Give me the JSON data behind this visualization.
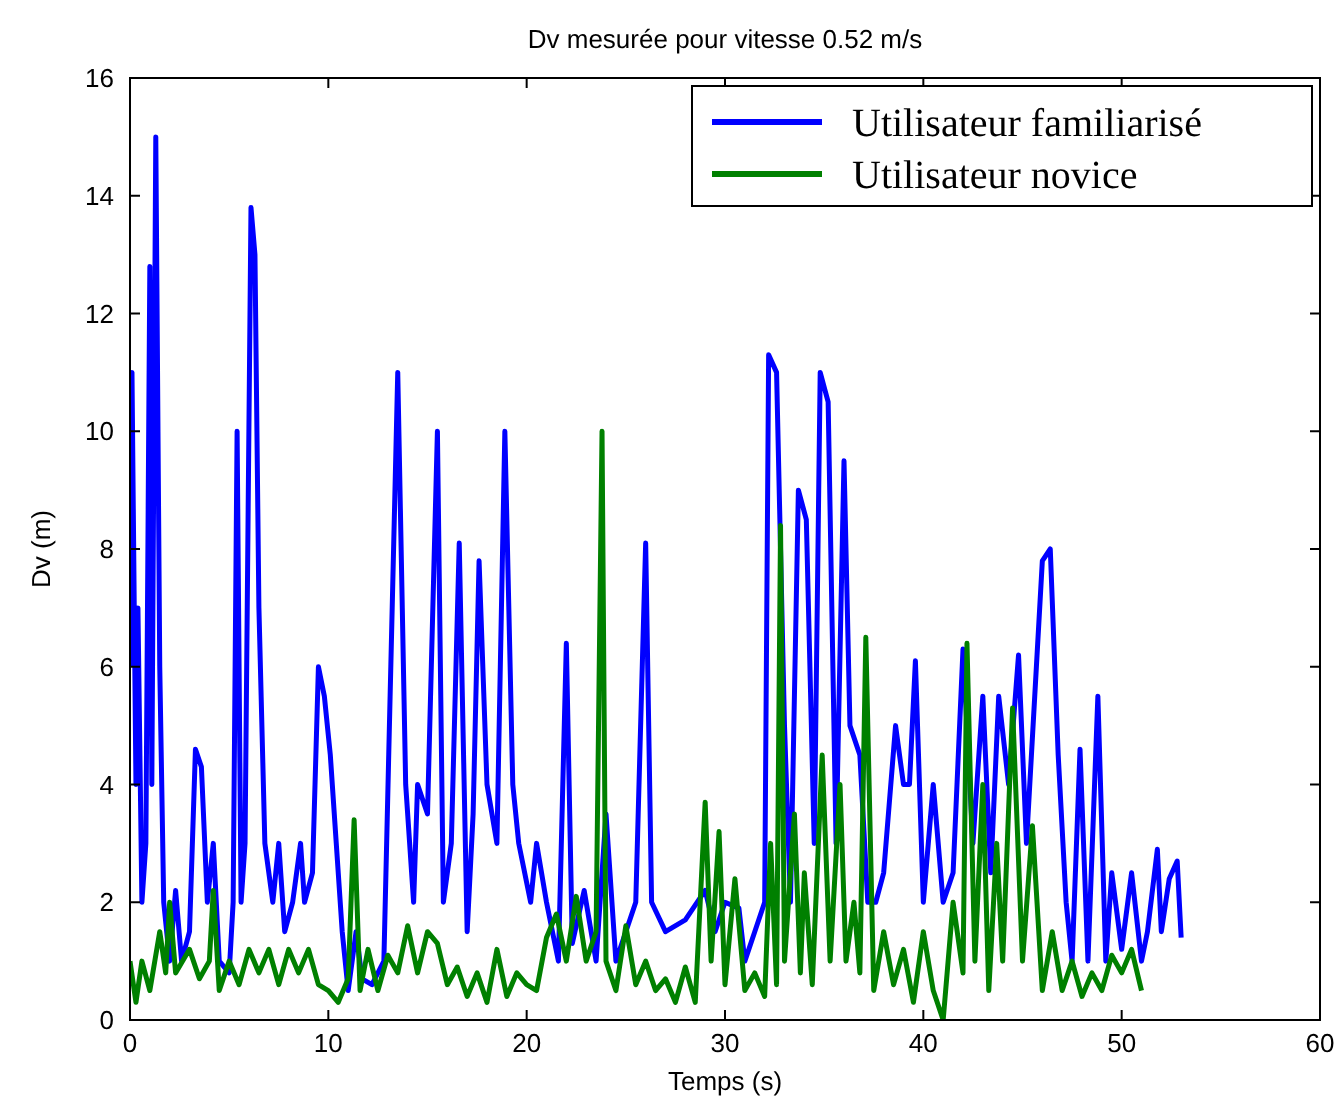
{
  "chart_data": {
    "type": "line",
    "title": "Dv mesurée pour vitesse 0.52 m/s",
    "xlabel": "Temps (s)",
    "ylabel": "Dv (m)",
    "xlim": [
      0,
      60
    ],
    "xticks": [
      0,
      10,
      20,
      30,
      40,
      50,
      60
    ],
    "ylim": [
      0,
      16
    ],
    "yticks": [
      0,
      2,
      4,
      6,
      8,
      10,
      12,
      14,
      16
    ],
    "grid": false,
    "legend": "top right",
    "marker": "none",
    "line_style": "solid",
    "series": [
      {
        "name": "Utilisateur familiarisé",
        "color": "#0000ff",
        "x": [
          0,
          0.1,
          0.3,
          0.4,
          0.6,
          0.8,
          1.0,
          1.1,
          1.3,
          1.5,
          1.7,
          2.0,
          2.3,
          2.6,
          3.0,
          3.3,
          3.6,
          3.9,
          4.2,
          4.5,
          5.0,
          5.2,
          5.4,
          5.6,
          5.8,
          6.1,
          6.3,
          6.5,
          6.8,
          7.2,
          7.5,
          7.8,
          8.2,
          8.6,
          8.8,
          9.2,
          9.5,
          9.8,
          10.1,
          10.4,
          10.7,
          11.0,
          11.4,
          11.7,
          12.2,
          12.8,
          13.5,
          13.9,
          14.3,
          14.5,
          15.0,
          15.5,
          15.8,
          16.2,
          16.6,
          17.0,
          17.3,
          17.6,
          18.0,
          18.5,
          18.9,
          19.3,
          19.6,
          20.2,
          20.5,
          21.0,
          21.6,
          22.0,
          22.3,
          22.9,
          23.5,
          24.0,
          24.5,
          25.0,
          25.5,
          26.0,
          26.3,
          27.0,
          28.0,
          29.0,
          29.5,
          30.0,
          30.7,
          31.0,
          31.5,
          32.0,
          32.2,
          32.6,
          33.0,
          33.3,
          33.7,
          34.1,
          34.5,
          34.8,
          35.2,
          35.6,
          36.0,
          36.3,
          36.8,
          37.2,
          37.6,
          38.0,
          38.6,
          39.0,
          39.3,
          39.6,
          40.0,
          40.5,
          41.0,
          41.5,
          42.0,
          42.5,
          43.0,
          43.4,
          43.8,
          44.3,
          44.8,
          45.2,
          45.7,
          46.0,
          46.4,
          46.8,
          47.2,
          47.5,
          47.9,
          48.3,
          48.8,
          49.2,
          49.5,
          50.0,
          50.5,
          51.0,
          51.3,
          51.8,
          52.0,
          52.4,
          52.8,
          53.0
        ],
        "values": [
          6,
          11,
          4,
          7,
          2,
          3,
          12.8,
          4,
          15,
          6,
          2,
          1,
          2.2,
          1,
          1.5,
          4.6,
          4.3,
          2,
          3,
          1,
          0.8,
          2,
          10,
          2,
          3,
          13.8,
          13,
          7,
          3,
          2,
          3,
          1.5,
          2,
          3,
          2,
          2.5,
          6,
          5.5,
          4.5,
          3,
          1.5,
          0.5,
          1.5,
          0.7,
          0.6,
          1,
          11,
          4,
          2,
          4,
          3.5,
          10,
          2,
          3,
          8.1,
          1.5,
          3.5,
          7.8,
          4,
          3,
          10,
          4,
          3,
          2,
          3,
          2,
          1,
          6.4,
          1.3,
          2.2,
          1,
          3.5,
          1,
          1.5,
          2,
          8.1,
          2,
          1.5,
          1.7,
          2.2,
          1.5,
          2,
          1.9,
          1,
          1.5,
          2,
          11.3,
          11,
          5,
          2,
          9,
          8.5,
          3,
          11,
          10.5,
          3,
          9.5,
          5,
          4.5,
          2,
          2,
          2.5,
          5,
          4,
          4,
          6.1,
          2,
          4,
          2,
          2.5,
          6.3,
          3,
          5.5,
          2.5,
          5.5,
          4,
          6.2,
          3,
          6,
          7.8,
          8,
          4.5,
          2,
          1,
          4.6,
          1,
          5.5,
          1,
          2.5,
          1.2,
          2.5,
          1,
          1.5,
          2.9,
          1.5,
          2.4,
          2.7,
          1.4
        ]
      },
      {
        "name": "Utilisateur novice",
        "color": "#008000",
        "x": [
          0,
          0.3,
          0.6,
          1.0,
          1.5,
          1.8,
          2.0,
          2.3,
          3.0,
          3.5,
          4.0,
          4.2,
          4.5,
          5.0,
          5.5,
          6.0,
          6.5,
          7.0,
          7.5,
          8.0,
          8.5,
          9.0,
          9.5,
          10.0,
          10.5,
          11.0,
          11.3,
          11.6,
          12.0,
          12.5,
          13.0,
          13.5,
          14.0,
          14.5,
          15.0,
          15.5,
          16.0,
          16.5,
          17.0,
          17.5,
          18.0,
          18.5,
          19.0,
          19.5,
          20.0,
          20.5,
          21.0,
          21.5,
          22.0,
          22.5,
          23.0,
          23.5,
          23.8,
          24.0,
          24.5,
          25.0,
          25.5,
          26.0,
          26.5,
          27.0,
          27.5,
          28.0,
          28.5,
          29.0,
          29.3,
          29.7,
          30.0,
          30.5,
          31.0,
          31.5,
          32.0,
          32.3,
          32.6,
          32.8,
          33.0,
          33.5,
          33.8,
          34.0,
          34.4,
          34.9,
          35.3,
          35.8,
          36.1,
          36.5,
          36.8,
          37.1,
          37.5,
          38.0,
          38.5,
          39.0,
          39.5,
          40.0,
          40.5,
          41.0,
          41.5,
          42.0,
          42.2,
          42.6,
          43.0,
          43.3,
          43.7,
          44.0,
          44.5,
          45.0,
          45.5,
          46.0,
          46.5,
          47.0,
          47.5,
          48.0,
          48.5,
          49.0,
          49.5,
          50.0,
          50.5,
          51.0
        ],
        "values": [
          1,
          0.3,
          1,
          0.5,
          1.5,
          0.8,
          2.0,
          0.8,
          1.2,
          0.7,
          1,
          2.2,
          0.5,
          1.0,
          0.6,
          1.2,
          0.8,
          1.2,
          0.6,
          1.2,
          0.8,
          1.2,
          0.6,
          0.5,
          0.3,
          0.7,
          3.4,
          0.5,
          1.2,
          0.5,
          1.1,
          0.8,
          1.6,
          0.8,
          1.5,
          1.3,
          0.6,
          0.9,
          0.4,
          0.8,
          0.3,
          1.2,
          0.4,
          0.8,
          0.6,
          0.5,
          1.4,
          1.8,
          1.0,
          2.1,
          1.0,
          1.5,
          10,
          1.0,
          0.5,
          1.6,
          0.6,
          1.0,
          0.5,
          0.7,
          0.3,
          0.9,
          0.3,
          3.7,
          1,
          3.2,
          0.6,
          2.4,
          0.5,
          0.8,
          0.4,
          3,
          0.6,
          8.4,
          1,
          3.5,
          0.8,
          2.5,
          0.6,
          4.5,
          1,
          4,
          1,
          2,
          0.8,
          6.5,
          0.5,
          1.5,
          0.6,
          1.2,
          0.3,
          1.5,
          0.5,
          0,
          2,
          0.8,
          6.4,
          1,
          4,
          0.5,
          3,
          1,
          5.3,
          1,
          3.3,
          0.5,
          1.5,
          0.5,
          1,
          0.4,
          0.8,
          0.5,
          1.1,
          0.8,
          1.2,
          0.5
        ]
      }
    ]
  }
}
